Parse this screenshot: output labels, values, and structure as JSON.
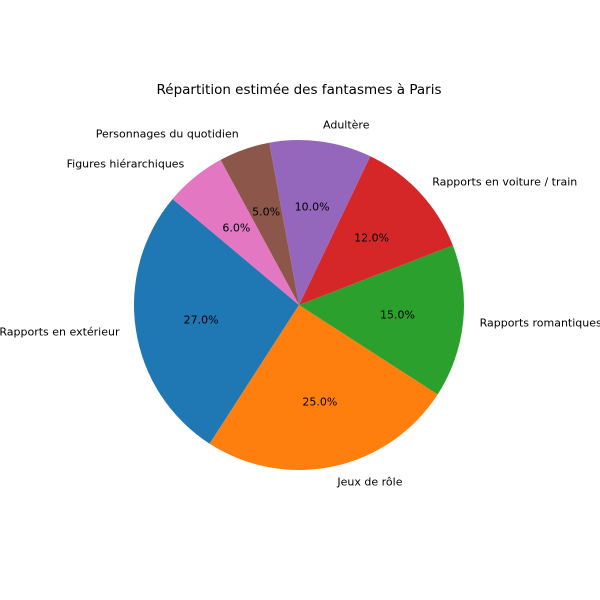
{
  "chart_data": {
    "type": "pie",
    "title": "Répartition estimée des fantasmes à Paris",
    "background": "#ffffff",
    "text_color": "#000000",
    "start_angle": 140,
    "direction": "counterclockwise",
    "label_distance": 1.1,
    "pct_distance": 0.6,
    "legend": "none",
    "slices": [
      {
        "label": "Rapports en extérieur",
        "value": 27.0,
        "pct_label": "27.0%",
        "color": "#1f77b4"
      },
      {
        "label": "Jeux de rôle",
        "value": 25.0,
        "pct_label": "25.0%",
        "color": "#ff7f0e"
      },
      {
        "label": "Rapports romantiques",
        "value": 15.0,
        "pct_label": "15.0%",
        "color": "#2ca02c"
      },
      {
        "label": "Rapports en voiture / train",
        "value": 12.0,
        "pct_label": "12.0%",
        "color": "#d62728"
      },
      {
        "label": "Adultère",
        "value": 10.0,
        "pct_label": "10.0%",
        "color": "#9467bd"
      },
      {
        "label": "Personnages du quotidien",
        "value": 5.0,
        "pct_label": "5.0%",
        "color": "#8c564b"
      },
      {
        "label": "Figures hiérarchiques",
        "value": 6.0,
        "pct_label": "6.0%",
        "color": "#e377c2"
      }
    ]
  }
}
